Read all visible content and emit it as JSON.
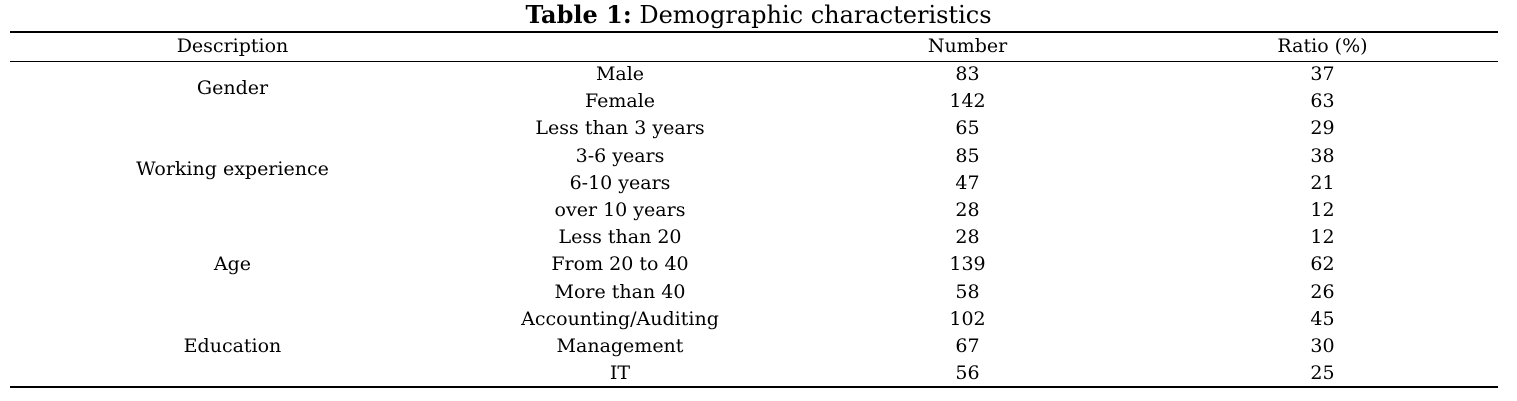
{
  "caption": {
    "label": "Table 1:",
    "text": "Demographic characteristics"
  },
  "headers": {
    "description": "Description",
    "number": "Number",
    "ratio": "Ratio (%)"
  },
  "groups": [
    {
      "name": "Gender",
      "rows": [
        {
          "category": "Male",
          "number": "83",
          "ratio": "37"
        },
        {
          "category": "Female",
          "number": "142",
          "ratio": "63"
        }
      ]
    },
    {
      "name": "Working experience",
      "rows": [
        {
          "category": "Less than 3 years",
          "number": "65",
          "ratio": "29"
        },
        {
          "category": "3-6 years",
          "number": "85",
          "ratio": "38"
        },
        {
          "category": "6-10 years",
          "number": "47",
          "ratio": "21"
        },
        {
          "category": "over 10 years",
          "number": "28",
          "ratio": "12"
        }
      ]
    },
    {
      "name": "Age",
      "rows": [
        {
          "category": "Less than 20",
          "number": "28",
          "ratio": "12"
        },
        {
          "category": "From 20 to 40",
          "number": "139",
          "ratio": "62"
        },
        {
          "category": "More than 40",
          "number": "58",
          "ratio": "26"
        }
      ]
    },
    {
      "name": "Education",
      "rows": [
        {
          "category": "Accounting/Auditing",
          "number": "102",
          "ratio": "45"
        },
        {
          "category": "Management",
          "number": "67",
          "ratio": "30"
        },
        {
          "category": "IT",
          "number": "56",
          "ratio": "25"
        }
      ]
    }
  ]
}
